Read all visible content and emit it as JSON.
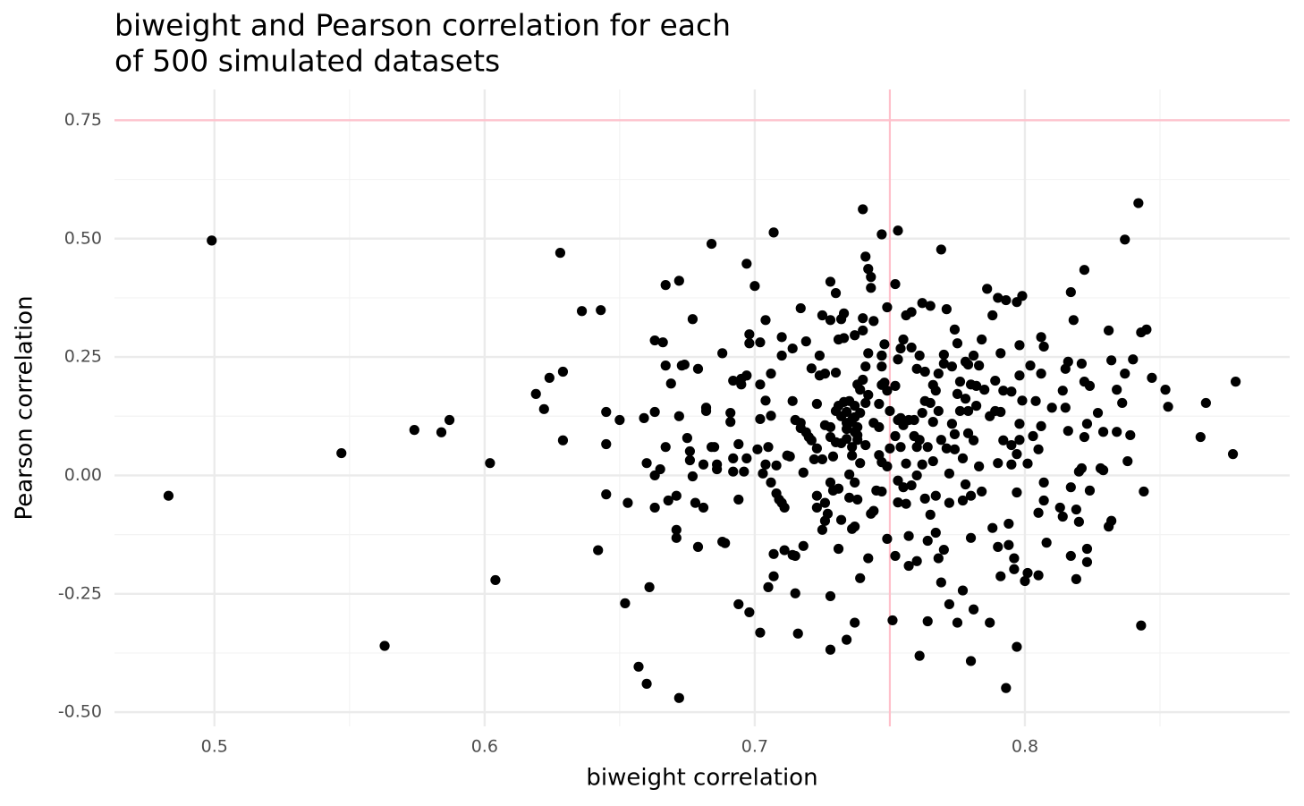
{
  "chart_data": {
    "type": "scatter",
    "title": [
      "biweight and Pearson correlation for each",
      "of 500 simulated datasets"
    ],
    "x_label": "biweight correlation",
    "y_label": "Pearson correlation",
    "xlim": [
      0.463,
      0.898
    ],
    "ylim": [
      -0.53,
      0.815
    ],
    "xticks": [
      0.5,
      0.6,
      0.7,
      0.8
    ],
    "yticks": [
      {
        "value": -0.5,
        "label": "-0.50"
      },
      -0.25,
      {
        "value": 0,
        "label": "0.00"
      },
      0.25,
      {
        "value": 0.5,
        "label": "0.50"
      },
      0.75
    ],
    "grid": true,
    "color": "#000000",
    "hline": 0.75,
    "vline": 0.75,
    "reference_color": "#ffc0cb",
    "x": [
      0.483,
      0.499,
      0.547,
      0.563,
      0.574,
      0.584,
      0.587,
      0.602,
      0.604,
      0.619,
      0.622,
      0.624,
      0.628,
      0.629,
      0.629,
      0.636,
      0.643,
      0.642,
      0.645,
      0.645,
      0.645,
      0.65,
      0.652,
      0.653,
      0.657,
      0.659,
      0.66,
      0.66,
      0.661,
      0.663,
      0.663,
      0.663,
      0.663,
      0.665,
      0.666,
      0.667,
      0.667,
      0.668,
      0.669,
      0.677,
      0.667,
      0.672,
      0.671,
      0.671,
      0.671,
      0.672,
      0.673,
      0.674,
      0.672,
      0.675,
      0.676,
      0.676,
      0.677,
      0.678,
      0.679,
      0.679,
      0.681,
      0.681,
      0.682,
      0.682,
      0.684,
      0.684,
      0.685,
      0.686,
      0.686,
      0.688,
      0.688,
      0.689,
      0.691,
      0.691,
      0.692,
      0.692,
      0.692,
      0.694,
      0.694,
      0.694,
      0.695,
      0.695,
      0.696,
      0.697,
      0.697,
      0.698,
      0.698,
      0.698,
      0.697,
      0.7,
      0.701,
      0.702,
      0.702,
      0.702,
      0.702,
      0.703,
      0.704,
      0.704,
      0.705,
      0.704,
      0.705,
      0.706,
      0.706,
      0.706,
      0.707,
      0.707,
      0.707,
      0.708,
      0.708,
      0.709,
      0.71,
      0.71,
      0.71,
      0.711,
      0.711,
      0.712,
      0.713,
      0.714,
      0.714,
      0.714,
      0.715,
      0.715,
      0.715,
      0.716,
      0.717,
      0.717,
      0.717,
      0.718,
      0.718,
      0.719,
      0.719,
      0.72,
      0.721,
      0.721,
      0.722,
      0.723,
      0.723,
      0.723,
      0.723,
      0.724,
      0.724,
      0.725,
      0.725,
      0.725,
      0.726,
      0.726,
      0.726,
      0.726,
      0.727,
      0.728,
      0.728,
      0.728,
      0.728,
      0.728,
      0.728,
      0.728,
      0.729,
      0.729,
      0.73,
      0.73,
      0.73,
      0.73,
      0.731,
      0.731,
      0.731,
      0.731,
      0.732,
      0.732,
      0.732,
      0.732,
      0.733,
      0.733,
      0.733,
      0.734,
      0.734,
      0.734,
      0.734,
      0.734,
      0.735,
      0.735,
      0.735,
      0.735,
      0.736,
      0.736,
      0.736,
      0.736,
      0.737,
      0.737,
      0.737,
      0.737,
      0.737,
      0.737,
      0.737,
      0.738,
      0.738,
      0.738,
      0.738,
      0.738,
      0.739,
      0.739,
      0.739,
      0.739,
      0.74,
      0.74,
      0.74,
      0.74,
      0.741,
      0.741,
      0.741,
      0.741,
      0.742,
      0.742,
      0.742,
      0.742,
      0.743,
      0.743,
      0.743,
      0.744,
      0.744,
      0.744,
      0.745,
      0.746,
      0.746,
      0.746,
      0.747,
      0.747,
      0.747,
      0.747,
      0.747,
      0.747,
      0.747,
      0.748,
      0.748,
      0.749,
      0.749,
      0.749,
      0.749,
      0.75,
      0.75,
      0.751,
      0.752,
      0.752,
      0.752,
      0.752,
      0.753,
      0.753,
      0.753,
      0.753,
      0.753,
      0.754,
      0.754,
      0.754,
      0.755,
      0.755,
      0.755,
      0.756,
      0.756,
      0.756,
      0.757,
      0.757,
      0.757,
      0.758,
      0.758,
      0.758,
      0.759,
      0.759,
      0.76,
      0.76,
      0.76,
      0.76,
      0.761,
      0.761,
      0.761,
      0.762,
      0.762,
      0.762,
      0.763,
      0.763,
      0.763,
      0.764,
      0.764,
      0.764,
      0.765,
      0.765,
      0.765,
      0.766,
      0.766,
      0.766,
      0.767,
      0.767,
      0.767,
      0.768,
      0.768,
      0.768,
      0.769,
      0.769,
      0.769,
      0.77,
      0.77,
      0.77,
      0.771,
      0.771,
      0.772,
      0.772,
      0.772,
      0.773,
      0.773,
      0.774,
      0.774,
      0.774,
      0.775,
      0.775,
      0.775,
      0.776,
      0.776,
      0.777,
      0.777,
      0.777,
      0.778,
      0.778,
      0.778,
      0.779,
      0.779,
      0.779,
      0.78,
      0.78,
      0.78,
      0.78,
      0.781,
      0.781,
      0.781,
      0.782,
      0.782,
      0.783,
      0.783,
      0.784,
      0.784,
      0.785,
      0.786,
      0.787,
      0.787,
      0.788,
      0.788,
      0.789,
      0.789,
      0.79,
      0.79,
      0.79,
      0.791,
      0.791,
      0.791,
      0.792,
      0.792,
      0.793,
      0.793,
      0.794,
      0.794,
      0.795,
      0.795,
      0.795,
      0.796,
      0.796,
      0.797,
      0.797,
      0.797,
      0.797,
      0.798,
      0.798,
      0.798,
      0.798,
      0.799,
      0.799,
      0.8,
      0.801,
      0.801,
      0.802,
      0.803,
      0.804,
      0.805,
      0.805,
      0.805,
      0.806,
      0.806,
      0.806,
      0.807,
      0.807,
      0.807,
      0.808,
      0.81,
      0.813,
      0.814,
      0.814,
      0.815,
      0.815,
      0.816,
      0.816,
      0.817,
      0.817,
      0.817,
      0.818,
      0.819,
      0.819,
      0.82,
      0.82,
      0.821,
      0.821,
      0.822,
      0.822,
      0.822,
      0.823,
      0.823,
      0.823,
      0.824,
      0.824,
      0.827,
      0.828,
      0.829,
      0.829,
      0.831,
      0.832,
      0.831,
      0.832,
      0.834,
      0.834,
      0.836,
      0.837,
      0.837,
      0.838,
      0.839,
      0.84,
      0.842,
      0.843,
      0.843,
      0.844,
      0.845,
      0.847,
      0.852,
      0.853,
      0.865,
      0.867,
      0.877,
      0.878
    ],
    "y": [
      -0.043,
      0.496,
      0.047,
      -0.36,
      0.096,
      0.091,
      0.117,
      0.026,
      -0.221,
      0.172,
      0.14,
      0.206,
      0.47,
      0.219,
      0.074,
      0.347,
      0.349,
      -0.158,
      0.134,
      0.066,
      -0.04,
      0.117,
      -0.27,
      -0.058,
      -0.404,
      0.121,
      0.026,
      -0.44,
      -0.236,
      0.285,
      -0.068,
      0.134,
      0.0,
      0.013,
      0.281,
      0.232,
      0.06,
      -0.053,
      0.194,
      0.33,
      0.402,
      0.411,
      -0.115,
      -0.132,
      -0.043,
      0.125,
      0.232,
      0.234,
      -0.47,
      0.079,
      0.032,
      0.051,
      -0.002,
      -0.058,
      -0.151,
      0.225,
      0.023,
      -0.068,
      0.143,
      0.136,
      0.489,
      0.06,
      0.06,
      0.013,
      0.023,
      0.258,
      -0.14,
      -0.143,
      0.132,
      0.113,
      0.2,
      0.036,
      0.008,
      0.066,
      -0.051,
      -0.272,
      0.204,
      0.192,
      0.008,
      0.211,
      0.447,
      -0.289,
      0.279,
      0.298,
      0.036,
      0.4,
      0.055,
      -0.332,
      0.119,
      0.192,
      0.281,
      0.004,
      0.328,
      0.023,
      0.06,
      0.158,
      -0.236,
      0.215,
      0.126,
      -0.015,
      0.513,
      -0.213,
      -0.166,
      0.021,
      -0.038,
      -0.051,
      -0.058,
      0.253,
      0.292,
      -0.158,
      -0.068,
      0.042,
      0.04,
      0.157,
      0.268,
      -0.168,
      -0.249,
      -0.17,
      0.117,
      -0.334,
      0.353,
      0.1,
      0.111,
      -0.149,
      0.006,
      0.283,
      0.091,
      0.081,
      0.074,
      0.226,
      0.034,
      0.151,
      -0.068,
      -0.043,
      0.057,
      0.211,
      0.253,
      0.338,
      -0.115,
      0.034,
      0.106,
      -0.096,
      -0.058,
      0.215,
      -0.081,
      -0.255,
      0.102,
      0.328,
      0.409,
      0.081,
      -0.015,
      -0.368,
      0.04,
      -0.032,
      0.385,
      0.217,
      0.07,
      0.136,
      0.147,
      0.287,
      -0.028,
      -0.155,
      0.33,
      0.068,
      -0.094,
      0.125,
      0.342,
      0.155,
      0.29,
      0.134,
      0.111,
      0.098,
      0.077,
      -0.347,
      0.002,
      -0.047,
      0.157,
      0.111,
      0.06,
      -0.113,
      0.117,
      0.042,
      0.296,
      0.092,
      -0.015,
      -0.311,
      0.123,
      0.147,
      -0.108,
      0.085,
      -0.051,
      0.192,
      0.075,
      0.102,
      -0.217,
      0.026,
      0.181,
      0.132,
      0.306,
      0.202,
      0.562,
      0.332,
      0.064,
      0.153,
      0.23,
      0.462,
      0.258,
      0.17,
      0.436,
      -0.175,
      -0.081,
      0.419,
      0.396,
      0.111,
      0.326,
      -0.075,
      -0.032,
      0.151,
      0.043,
      0.102,
      0.253,
      0.509,
      0.191,
      0.028,
      -0.034,
      0.253,
      0.23,
      0.277,
      0.196,
      0.179,
      0.019,
      0.355,
      -0.134,
      0.057,
      0.136,
      -0.306,
      0.083,
      0.189,
      0.404,
      -0.17,
      0.517,
      0.245,
      0.117,
      -0.057,
      -0.011,
      0.06,
      0.268,
      0.121,
      0.287,
      -0.025,
      0.106,
      0.025,
      -0.06,
      0.338,
      -0.128,
      0.117,
      -0.191,
      -0.021,
      0.27,
      0.345,
      0.083,
      0.117,
      0.06,
      -0.181,
      0.225,
      0.0,
      0.075,
      -0.381,
      0.253,
      0.364,
      0.023,
      0.132,
      -0.049,
      0.157,
      0.219,
      -0.138,
      -0.308,
      0.06,
      0.153,
      0.358,
      -0.083,
      0.113,
      0.191,
      0.03,
      0.179,
      -0.043,
      -0.121,
      -0.175,
      0.136,
      0.215,
      0.075,
      0.477,
      -0.226,
      0.255,
      -0.157,
      0.236,
      0.351,
      0.057,
      -0.272,
      -0.058,
      0.004,
      0.109,
      0.23,
      0.308,
      0.087,
      0.055,
      0.172,
      -0.311,
      0.279,
      0.136,
      0.198,
      -0.053,
      -0.243,
      0.036,
      0.162,
      0.24,
      -0.019,
      0.089,
      0.136,
      0.234,
      -0.392,
      -0.043,
      0.192,
      -0.132,
      0.253,
      -0.283,
      0.074,
      0.147,
      0.189,
      0.019,
      0.232,
      -0.034,
      0.287,
      0.181,
      0.394,
      0.125,
      -0.311,
      -0.111,
      0.338,
      0.136,
      0.2,
      0.375,
      -0.151,
      0.026,
      0.134,
      -0.213,
      0.258,
      0.179,
      0.074,
      0.37,
      -0.449,
      -0.102,
      -0.147,
      0.064,
      0.023,
      0.177,
      -0.175,
      -0.198,
      0.045,
      0.366,
      -0.036,
      -0.362,
      0.109,
      0.275,
      0.211,
      0.075,
      0.158,
      0.379,
      -0.223,
      0.025,
      -0.206,
      0.232,
      0.083,
      0.157,
      -0.079,
      0.055,
      -0.211,
      0.104,
      0.292,
      0.215,
      0.272,
      -0.015,
      -0.053,
      -0.142,
      0.143,
      -0.068,
      0.179,
      -0.087,
      0.225,
      0.143,
      0.24,
      0.094,
      -0.025,
      0.387,
      -0.17,
      0.328,
      -0.072,
      -0.219,
      0.008,
      -0.098,
      0.015,
      0.236,
      0.434,
      0.198,
      0.081,
      -0.183,
      0.109,
      -0.155,
      0.189,
      -0.032,
      0.132,
      0.015,
      0.092,
      0.011,
      0.306,
      0.243,
      -0.108,
      -0.096,
      0.181,
      0.092,
      0.153,
      0.215,
      0.498,
      0.03,
      0.085,
      0.245,
      0.575,
      -0.317,
      0.302,
      -0.034,
      0.308,
      0.206,
      0.181,
      0.145,
      0.081,
      0.153,
      0.045,
      0.198
    ]
  }
}
